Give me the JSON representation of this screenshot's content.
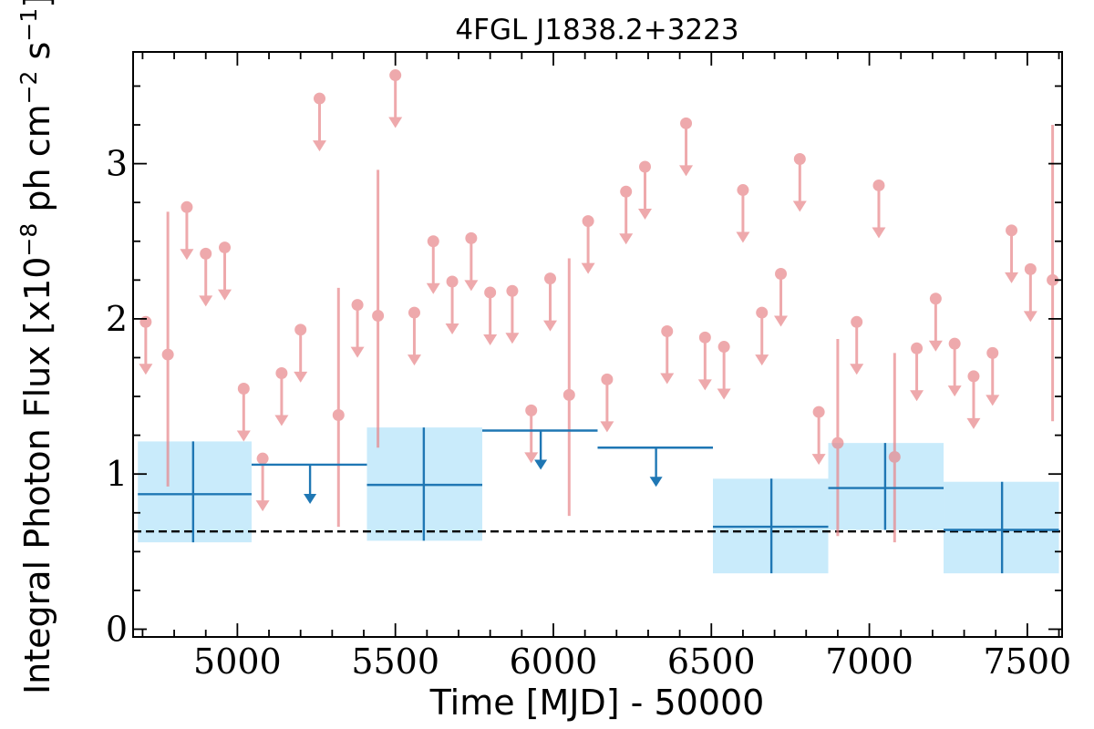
{
  "chart_data": {
    "type": "scatter",
    "title": "4FGL J1838.2+3223",
    "xlabel": "Time [MJD] - 50000",
    "ylabel": "Integral Photon Flux [x10",
    "ylabel_exp1": "−8",
    "ylabel_mid": " ph cm",
    "ylabel_exp2": "−2",
    "ylabel_mid2": " s",
    "ylabel_exp3": "−1",
    "ylabel_end": "]",
    "xlim": [
      4670,
      7610
    ],
    "ylim": [
      -0.05,
      3.72
    ],
    "xticks": [
      {
        "value": 5000,
        "label": "5000"
      },
      {
        "value": 5500,
        "label": "5500"
      },
      {
        "value": 6000,
        "label": "6000"
      },
      {
        "value": 6500,
        "label": "6500"
      },
      {
        "value": 7000,
        "label": "7000"
      },
      {
        "value": 7500,
        "label": "7500"
      }
    ],
    "yticks": [
      {
        "value": 0,
        "label": "0"
      },
      {
        "value": 1,
        "label": "1"
      },
      {
        "value": 2,
        "label": "2"
      },
      {
        "value": 3,
        "label": "3"
      }
    ],
    "x_minor_step": 100,
    "y_minor_step": 0.25,
    "average_flux": 0.63,
    "colors": {
      "short_bins": "#e8868a",
      "long_bins": "#1f77b4",
      "uncertainty_band": "#c9ebfb",
      "average_line": "#000000"
    },
    "series": [
      {
        "kind": "short_bins_detections",
        "points": [
          {
            "x": 4780,
            "y": 1.77,
            "ylo": 0.92,
            "yhi": 2.69
          },
          {
            "x": 5320,
            "y": 1.38,
            "ylo": 0.66,
            "yhi": 2.2
          },
          {
            "x": 5445,
            "y": 2.02,
            "ylo": 1.17,
            "yhi": 2.96
          },
          {
            "x": 6050,
            "y": 1.51,
            "ylo": 0.73,
            "yhi": 2.39
          },
          {
            "x": 6900,
            "y": 1.2,
            "ylo": 0.6,
            "yhi": 1.87
          },
          {
            "x": 7080,
            "y": 1.11,
            "ylo": 0.56,
            "yhi": 1.78
          },
          {
            "x": 7580,
            "y": 2.25,
            "ylo": 1.34,
            "yhi": 3.25
          }
        ]
      },
      {
        "kind": "short_bins_upper_limits",
        "points": [
          {
            "x": 4710,
            "y": 1.98
          },
          {
            "x": 4840,
            "y": 2.72
          },
          {
            "x": 4900,
            "y": 2.42
          },
          {
            "x": 4960,
            "y": 2.46
          },
          {
            "x": 5020,
            "y": 1.55
          },
          {
            "x": 5080,
            "y": 1.1
          },
          {
            "x": 5140,
            "y": 1.65
          },
          {
            "x": 5200,
            "y": 1.93
          },
          {
            "x": 5260,
            "y": 3.42
          },
          {
            "x": 5380,
            "y": 2.09
          },
          {
            "x": 5500,
            "y": 3.57
          },
          {
            "x": 5560,
            "y": 2.04
          },
          {
            "x": 5620,
            "y": 2.5
          },
          {
            "x": 5680,
            "y": 2.24
          },
          {
            "x": 5740,
            "y": 2.52
          },
          {
            "x": 5800,
            "y": 2.17
          },
          {
            "x": 5870,
            "y": 2.18
          },
          {
            "x": 5930,
            "y": 1.41
          },
          {
            "x": 5990,
            "y": 2.26
          },
          {
            "x": 6110,
            "y": 2.63
          },
          {
            "x": 6170,
            "y": 1.61
          },
          {
            "x": 6230,
            "y": 2.82
          },
          {
            "x": 6290,
            "y": 2.98
          },
          {
            "x": 6360,
            "y": 1.92
          },
          {
            "x": 6420,
            "y": 3.26
          },
          {
            "x": 6480,
            "y": 1.88
          },
          {
            "x": 6540,
            "y": 1.82
          },
          {
            "x": 6600,
            "y": 2.83
          },
          {
            "x": 6660,
            "y": 2.04
          },
          {
            "x": 6720,
            "y": 2.29
          },
          {
            "x": 6780,
            "y": 3.03
          },
          {
            "x": 6840,
            "y": 1.4
          },
          {
            "x": 6960,
            "y": 1.98
          },
          {
            "x": 7030,
            "y": 2.86
          },
          {
            "x": 7150,
            "y": 1.81
          },
          {
            "x": 7210,
            "y": 2.13
          },
          {
            "x": 7270,
            "y": 1.84
          },
          {
            "x": 7330,
            "y": 1.63
          },
          {
            "x": 7390,
            "y": 1.78
          },
          {
            "x": 7450,
            "y": 2.57
          },
          {
            "x": 7510,
            "y": 2.32
          }
        ]
      },
      {
        "kind": "long_bins_detections",
        "points": [
          {
            "x0": 4685,
            "x1": 5045,
            "x": 4860,
            "y": 0.87,
            "ylo": 0.56,
            "yhi": 1.21
          },
          {
            "x0": 5410,
            "x1": 5775,
            "x": 5590,
            "y": 0.93,
            "ylo": 0.57,
            "yhi": 1.3
          },
          {
            "x0": 6505,
            "x1": 6870,
            "x": 6690,
            "y": 0.66,
            "ylo": 0.36,
            "yhi": 0.97
          },
          {
            "x0": 6870,
            "x1": 7235,
            "x": 7050,
            "y": 0.91,
            "ylo": 0.64,
            "yhi": 1.2
          },
          {
            "x0": 7235,
            "x1": 7600,
            "x": 7420,
            "y": 0.64,
            "ylo": 0.36,
            "yhi": 0.95
          }
        ]
      },
      {
        "kind": "long_bins_upper_limits",
        "points": [
          {
            "x0": 5045,
            "x1": 5410,
            "x": 5230,
            "y": 1.06
          },
          {
            "x0": 5775,
            "x1": 6140,
            "x": 5960,
            "y": 1.28
          },
          {
            "x0": 6140,
            "x1": 6505,
            "x": 6325,
            "y": 1.17
          }
        ]
      }
    ]
  }
}
